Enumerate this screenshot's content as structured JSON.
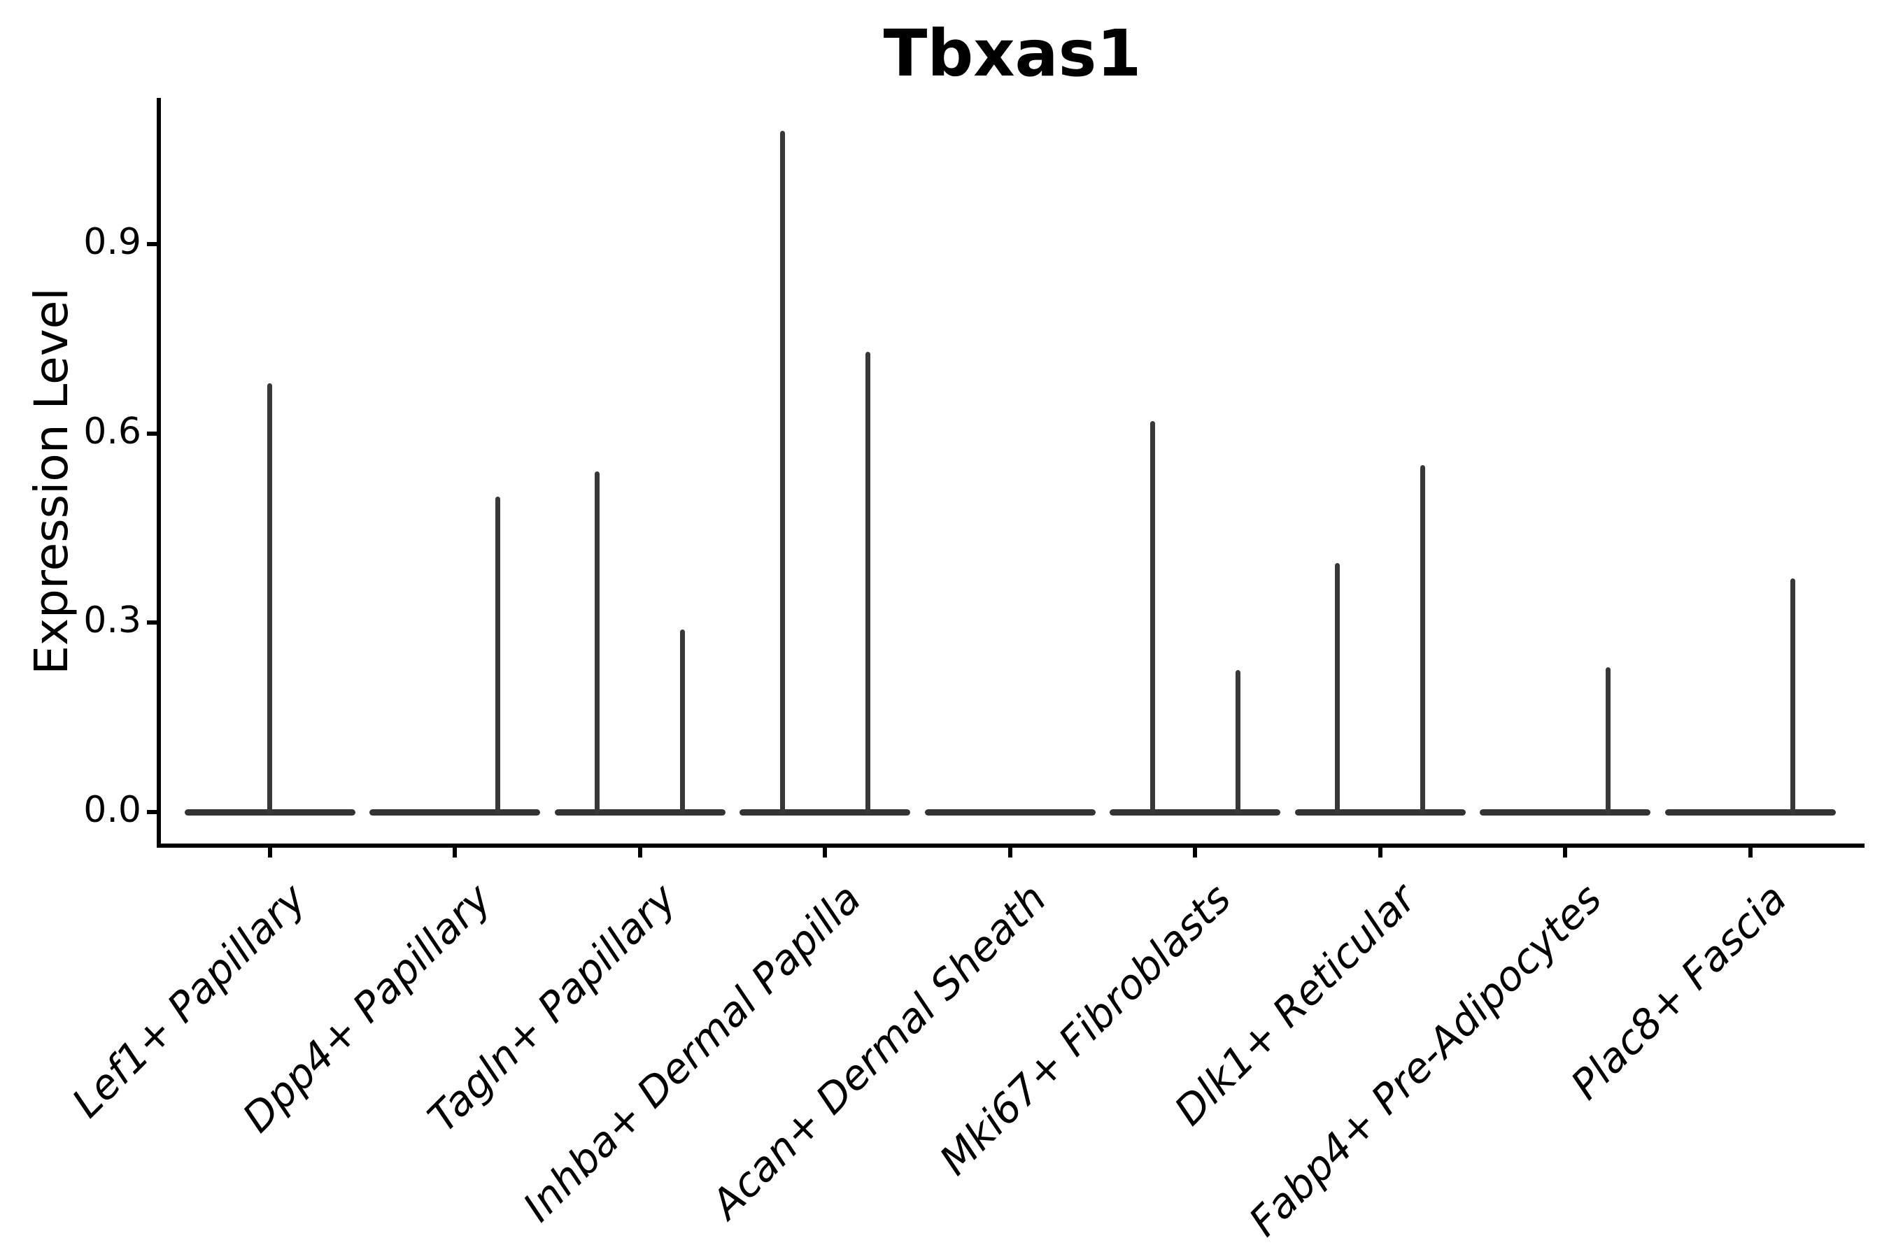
{
  "figure": {
    "title": "Tbxas1",
    "y_axis_label": "Expression Level"
  },
  "chart_data": {
    "type": "violin",
    "title": "Tbxas1",
    "xlabel": "",
    "ylabel": "Expression Level",
    "ylim": [
      -0.05,
      1.13
    ],
    "grid": false,
    "legend_position": "none",
    "x_tick_label_style": "italic, rotated 45deg",
    "yticks": [
      {
        "label": "0.0",
        "value": 0.0
      },
      {
        "label": "0.3",
        "value": 0.3
      },
      {
        "label": "0.6",
        "value": 0.6
      },
      {
        "label": "0.9",
        "value": 0.9
      }
    ],
    "description": "Violin plot of Tbxas1 expression per fibroblast cluster; violins are collapsed flat at 0 with thin spikes up to the maximum expression of rare expressing cells. Spikes sit at the center or at the left/right split position within each category.",
    "violins": [
      {
        "category": "Lef1+ Papillary",
        "baseline_value": 0,
        "spikes": [
          {
            "position": "center",
            "max_value": 0.68
          }
        ]
      },
      {
        "category": "Dpp4+ Papillary",
        "baseline_value": 0,
        "spikes": [
          {
            "position": "right",
            "max_value": 0.5
          }
        ]
      },
      {
        "category": "Tagln+ Papillary",
        "baseline_value": 0,
        "spikes": [
          {
            "position": "left",
            "max_value": 0.54
          },
          {
            "position": "right",
            "max_value": 0.29
          }
        ]
      },
      {
        "category": "Inhba+ Dermal Papilla",
        "baseline_value": 0,
        "spikes": [
          {
            "position": "left",
            "max_value": 1.08
          },
          {
            "position": "right",
            "max_value": 0.73
          }
        ]
      },
      {
        "category": "Acan+ Dermal Sheath",
        "baseline_value": 0,
        "spikes": []
      },
      {
        "category": "Mki67+ Fibroblasts",
        "baseline_value": 0,
        "spikes": [
          {
            "position": "left",
            "max_value": 0.62
          },
          {
            "position": "right",
            "max_value": 0.225
          }
        ]
      },
      {
        "category": "Dlk1+ Reticular",
        "baseline_value": 0,
        "spikes": [
          {
            "position": "left",
            "max_value": 0.395
          },
          {
            "position": "right",
            "max_value": 0.55
          }
        ]
      },
      {
        "category": "Fabp4+ Pre-Adipocytes",
        "baseline_value": 0,
        "spikes": [
          {
            "position": "right",
            "max_value": 0.23
          }
        ]
      },
      {
        "category": "Plac8+ Fascia",
        "baseline_value": 0,
        "spikes": [
          {
            "position": "right",
            "max_value": 0.37
          }
        ]
      }
    ],
    "colors": {
      "axis": "#000000",
      "violin_outline": "#333333",
      "text": "#000000",
      "background": "#ffffff"
    }
  }
}
